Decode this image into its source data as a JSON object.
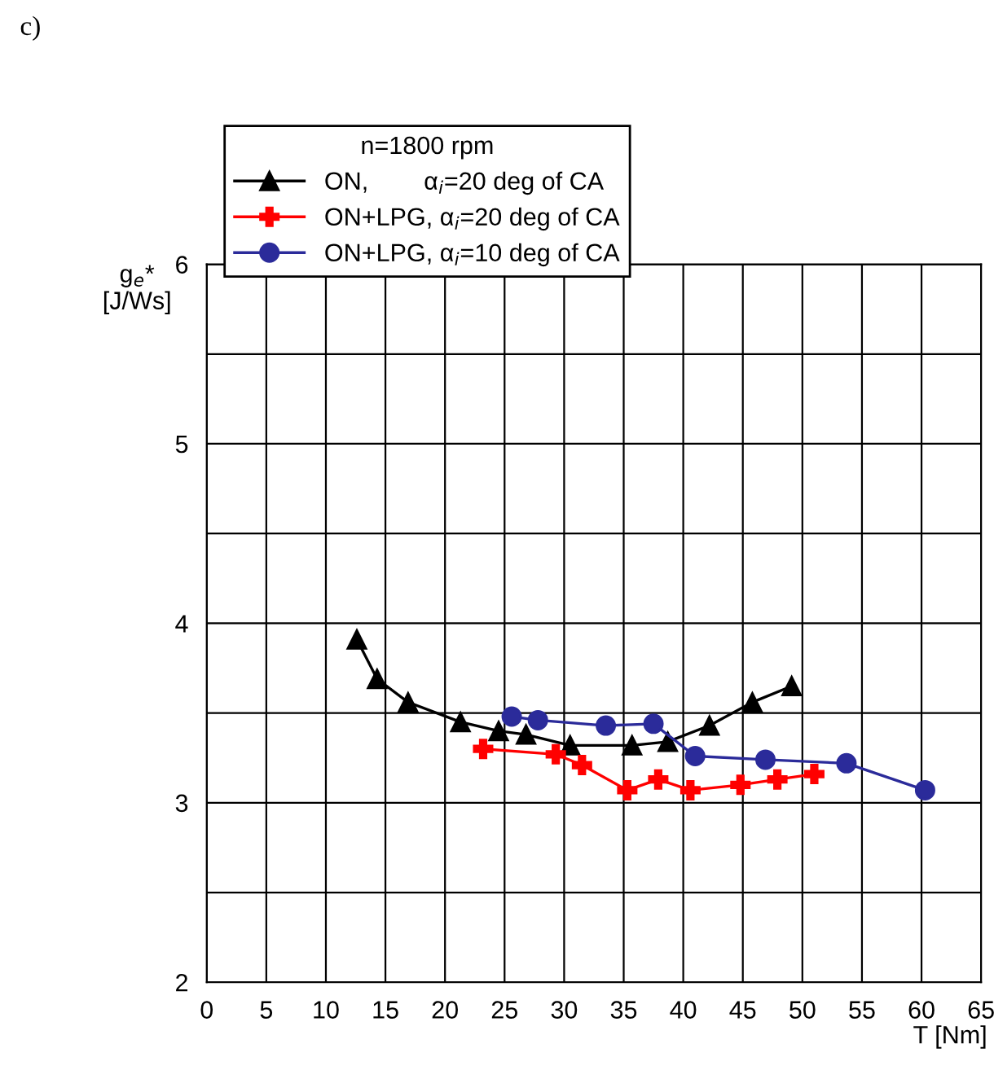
{
  "chart_data": {
    "type": "line",
    "xlabel": "T [Nm]",
    "ylabel": "g$_{e}$*\n[J/Ws]",
    "legend_title": "n=1800 rpm",
    "legend": "top",
    "grid": true,
    "line_style": "solid",
    "annotations": [
      "c)"
    ],
    "xlim": [
      0,
      65
    ],
    "xticks": [
      0,
      5,
      10,
      15,
      20,
      25,
      30,
      35,
      40,
      45,
      50,
      55,
      60,
      65
    ],
    "ylim": [
      2,
      6
    ],
    "yticks": [
      2,
      {
        "value": 2.5,
        "label": null
      },
      3,
      {
        "value": 3.5,
        "label": null
      },
      4,
      {
        "value": 4.5,
        "label": null
      },
      5,
      {
        "value": 5.5,
        "label": null
      },
      6
    ],
    "series": [
      {
        "name": "ON,        α$_{i}$=20 deg of CA",
        "color": "#000000",
        "marker": "triangle",
        "x": [
          12.6,
          14.3,
          16.9,
          21.3,
          24.5,
          26.8,
          30.5,
          35.7,
          38.7,
          42.2,
          45.8,
          49.1
        ],
        "values": [
          3.91,
          3.69,
          3.56,
          3.45,
          3.4,
          3.38,
          3.32,
          3.32,
          3.34,
          3.43,
          3.56,
          3.65
        ]
      },
      {
        "name": "ON+LPG, α$_{i}$=20 deg of CA",
        "color": "#ff0000",
        "marker": "cross",
        "x": [
          23.2,
          29.3,
          31.5,
          35.3,
          37.9,
          40.6,
          44.8,
          47.9,
          51.0
        ],
        "values": [
          3.3,
          3.27,
          3.21,
          3.07,
          3.13,
          3.07,
          3.1,
          3.13,
          3.16
        ]
      },
      {
        "name": "ON+LPG, α$_{i}$=10 deg of CA",
        "color": "#2b2b9a",
        "marker": "circle",
        "x": [
          25.6,
          27.8,
          33.5,
          37.5,
          41.0,
          46.9,
          53.7,
          60.3
        ],
        "values": [
          3.48,
          3.46,
          3.43,
          3.44,
          3.26,
          3.24,
          3.22,
          3.07
        ]
      }
    ]
  }
}
